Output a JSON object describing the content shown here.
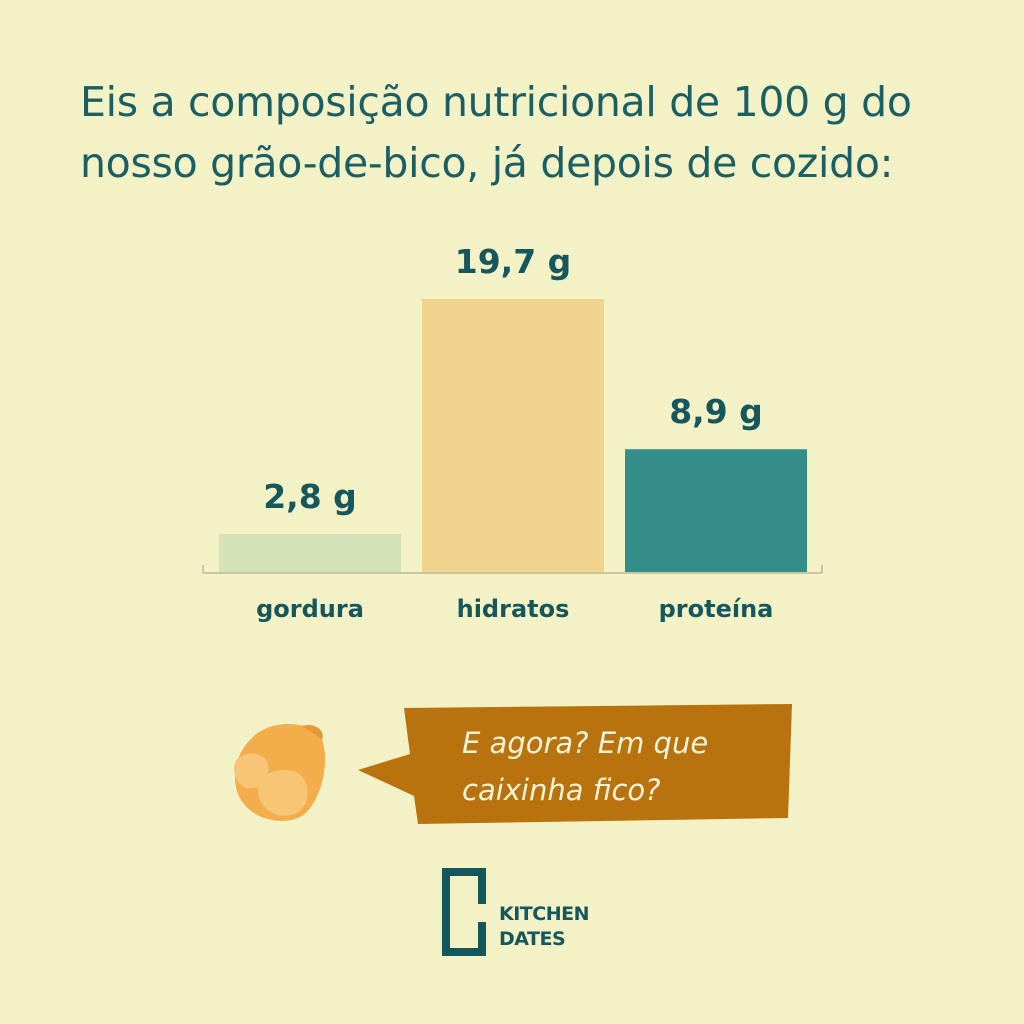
{
  "intro_text": "Eis a composição nutricional de 100 g do nosso grão-de-bico, já depois de cozido:",
  "chart_data": {
    "type": "bar",
    "categories": [
      "gordura",
      "hidratos",
      "proteína"
    ],
    "values": [
      2.8,
      19.7,
      8.9
    ],
    "value_labels": [
      "2,8 g",
      "19,7 g",
      "8,9 g"
    ],
    "bar_colors": [
      "#d4e3b7",
      "#f0d48e",
      "#358d8a"
    ],
    "unit": "g",
    "ylim": [
      0,
      19.7
    ],
    "grid": false,
    "legend": "none"
  },
  "speech_bubble": {
    "text": "E agora? Em que caixinha fico?",
    "color": "#b8730f"
  },
  "logo": {
    "line1": "KITCHEN",
    "line2": "DATES"
  },
  "colors": {
    "background": "#f3f1c6",
    "text": "#1b5e63"
  }
}
